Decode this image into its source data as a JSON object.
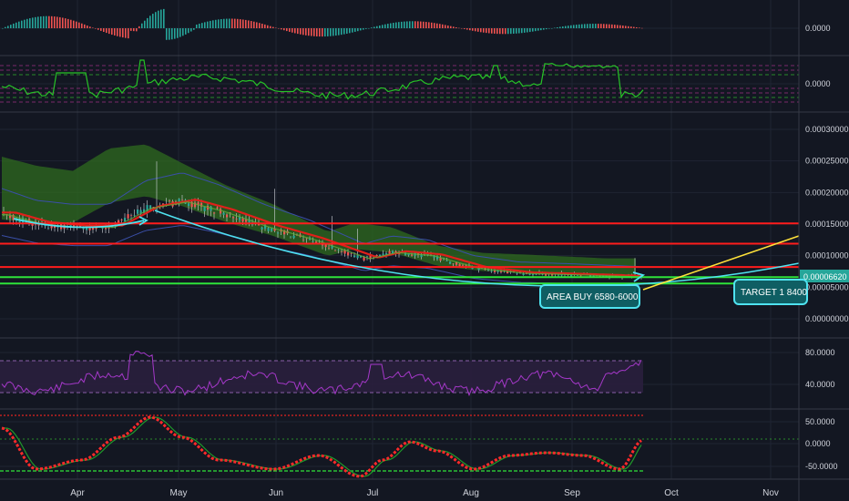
{
  "theme": {
    "background": "#131722",
    "grid": "#1f2433",
    "separator": "#363a45",
    "axis_text": "#d1d4dc",
    "bull": "#26a69a",
    "bear": "#ef5350",
    "cloud_green": "#2f6b1f",
    "level_red": "#ff1c1c",
    "level_green": "#2ee33a",
    "cyan": "#4fe3f0",
    "yellow": "#ffe23a",
    "rsi_line": "#a538c9",
    "rsi_band": "#2a1f3d"
  },
  "time_axis": {
    "labels": [
      "Apr",
      "May",
      "Jun",
      "Jul",
      "Aug",
      "Sep",
      "Oct",
      "Nov"
    ]
  },
  "chart_data": [
    {
      "id": "macd-histogram",
      "type": "bar",
      "pane": 0,
      "y_tick_labels": [
        "0.0000"
      ],
      "colors": [
        "#26a69a",
        "#ef5350"
      ]
    },
    {
      "id": "oscillator-line",
      "type": "line",
      "pane": 1,
      "y_tick_labels": [
        "0.0000"
      ],
      "color": "#27c227"
    },
    {
      "id": "price",
      "type": "candlestick",
      "pane": 2,
      "y_tick_labels": [
        "0.00030000",
        "0.00025000",
        "0.00020000",
        "0.00015000",
        "0.00010000",
        "0.00005000",
        "0.00000000"
      ],
      "ylim": [
        0,
        0.0003
      ],
      "last_price_label": "0.00006620",
      "horizontal_levels": [
        {
          "value": 0.000151,
          "color": "#ff1c1c"
        },
        {
          "value": 0.000119,
          "color": "#ff1c1c"
        },
        {
          "value": 8.2e-05,
          "color": "#ff1c1c"
        },
        {
          "value": 6.6e-05,
          "color": "#2ee33a"
        },
        {
          "value": 5.6e-05,
          "color": "#2ee33a"
        }
      ],
      "annotations": [
        {
          "id": "area-buy",
          "text": "AREA BUY 6580-6000"
        },
        {
          "id": "target",
          "text": "TARGET 1 8400"
        }
      ]
    },
    {
      "id": "rsi",
      "type": "line",
      "pane": 3,
      "y_tick_labels": [
        "80.0000",
        "40.0000"
      ],
      "color": "#a538c9"
    },
    {
      "id": "stoch",
      "type": "line",
      "pane": 4,
      "y_tick_labels": [
        "50.0000",
        "0.0000",
        "-50.0000"
      ],
      "color": "#ff2a2a"
    }
  ]
}
